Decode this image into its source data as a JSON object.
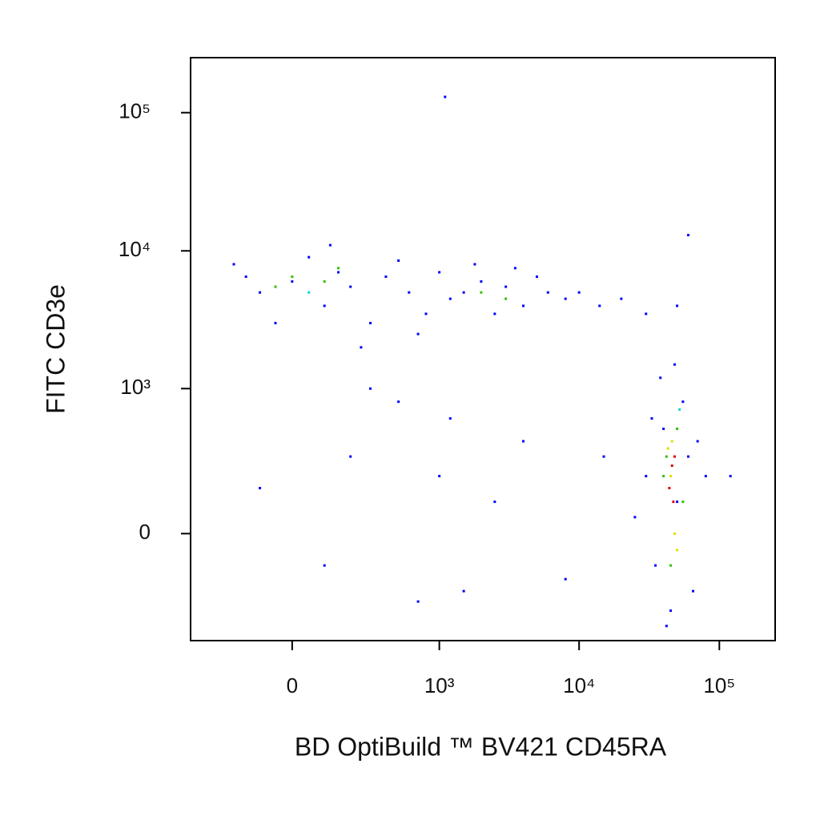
{
  "chart_data": {
    "type": "scatter",
    "x_label": "BD OptiBuild ™ BV421 CD45RA",
    "y_label": "FITC CD3e",
    "scale": "biexponential",
    "xlim": [
      -460,
      250000
    ],
    "ylim": [
      -520,
      250000
    ],
    "xticks": [
      0,
      {
        "value": 1000,
        "label": "10³"
      },
      {
        "value": 10000,
        "label": "10⁴"
      },
      {
        "value": 100000,
        "label": "10⁵"
      }
    ],
    "yticks": [
      0,
      {
        "value": 1000,
        "label": "10³"
      },
      {
        "value": 10000,
        "label": "10⁴"
      },
      {
        "value": 100000,
        "label": "10⁵"
      }
    ],
    "series": [
      {
        "color": "#0000ff",
        "x": [
          -200,
          -100,
          0,
          50,
          100,
          150,
          200,
          300,
          400,
          600,
          800,
          1000,
          1200,
          1500,
          2000,
          2500,
          3000,
          4000,
          5000,
          6000,
          8000,
          10000,
          14000,
          20000,
          30000,
          50000,
          -50,
          250,
          500,
          700,
          1800,
          3500,
          120,
          -150,
          30000,
          35000,
          40000,
          45000,
          50000,
          55000,
          60000,
          65000,
          70000,
          38000,
          42000,
          25000,
          80000,
          48000,
          33000,
          100,
          200,
          500,
          1000,
          1500,
          2500,
          4000,
          8000,
          -100,
          300,
          700,
          1200,
          15000,
          120000,
          1100,
          60000
        ],
        "y": [
          8000,
          5000,
          6000,
          9000,
          4000,
          7000,
          5500,
          3000,
          6500,
          5000,
          3500,
          7000,
          4500,
          5000,
          6000,
          3500,
          5500,
          4000,
          6500,
          5000,
          4500,
          5000,
          4000,
          4500,
          3500,
          4000,
          3000,
          2000,
          8500,
          2500,
          8000,
          7500,
          11000,
          6500,
          200,
          -100,
          500,
          -300,
          100,
          800,
          300,
          -200,
          400,
          1200,
          -400,
          50,
          200,
          1500,
          600,
          -100,
          300,
          800,
          200,
          -200,
          100,
          400,
          -150,
          150,
          1000,
          -250,
          600,
          300,
          200,
          130000,
          13000
        ]
      },
      {
        "color": "#00d8d8",
        "x": [
          50,
          52000
        ],
        "y": [
          5000,
          700
        ]
      },
      {
        "color": "#30c000",
        "x": [
          0,
          100,
          -50,
          2000,
          3000,
          40000,
          50000,
          45000,
          55000,
          42000,
          150
        ],
        "y": [
          6500,
          6000,
          5500,
          5000,
          4500,
          200,
          500,
          -100,
          100,
          300,
          7500
        ]
      },
      {
        "color": "#e0e000",
        "x": [
          45000,
          48000,
          43000,
          50000,
          46000
        ],
        "y": [
          200,
          0,
          350,
          -50,
          400
        ]
      },
      {
        "color": "#e00000",
        "x": [
          46000,
          47000,
          44000,
          48000
        ],
        "y": [
          250,
          100,
          150,
          300
        ]
      }
    ]
  }
}
